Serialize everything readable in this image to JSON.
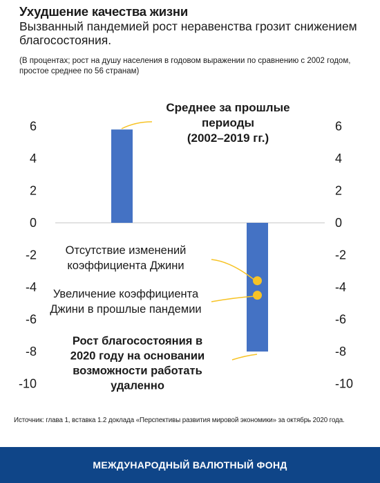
{
  "header": {
    "title": "Ухудшение качества жизни",
    "subtitle": "Вызванный пандемией рост неравенства грозит снижением благосостояния.",
    "note": "(В процентах; рост на душу населения в годовом выражении по сравнению с 2002 годом, простое среднее по 56 странам)"
  },
  "chart_data": {
    "type": "bar",
    "categories": [
      "Среднее за прошлые периоды (2002–2019 гг.)",
      "Рост благосостояния в 2020 году на основании возможности работать удаленно"
    ],
    "values": [
      5.8,
      -8.0
    ],
    "markers": [
      {
        "name": "Отсутствие изменений коэффициента Джини",
        "value": -3.6
      },
      {
        "name": "Увеличение коэффициента Джини в прошлые пандемии",
        "value": -4.5
      }
    ],
    "ylim": [
      -10,
      6
    ],
    "yticks": [
      6,
      4,
      2,
      0,
      -2,
      -4,
      -6,
      -8,
      -10
    ],
    "ytick_labels": [
      "6",
      "4",
      "2",
      "0",
      "-2",
      "-4",
      "-6",
      "-8",
      "-10"
    ],
    "annotations": {
      "bar1": [
        "Среднее за прошлые",
        "периоды",
        "(2002–2019 гг.)"
      ],
      "marker1": [
        "Отсутствие изменений",
        "коэффициента Джини"
      ],
      "marker2": [
        "Увеличение коэффициента",
        "Джини в прошлые пандемии"
      ],
      "bar2": [
        "Рост благосостояния в",
        "2020 году на основании",
        "возможности работать",
        "удаленно"
      ]
    },
    "colors": {
      "bar": "#4472c4",
      "marker": "#f7c325",
      "zero_line": "#d9d9d9"
    },
    "grid": false
  },
  "source": "Источник: глава 1, вставка 1.2 доклада «Перспективы развития мировой экономики» за октябрь 2020 года.",
  "footer": {
    "org": "МЕЖДУНАРОДНЫЙ ВАЛЮТНЫЙ ФОНД"
  }
}
